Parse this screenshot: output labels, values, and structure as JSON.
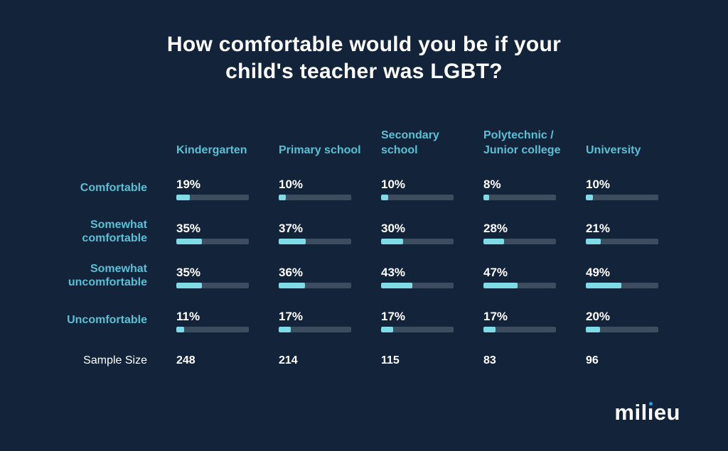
{
  "title": "How comfortable would you be if your child's teacher was LGBT?",
  "title_display": "How comfortable would you be if your\nchild's teacher was LGBT?",
  "chart_data": {
    "type": "bar",
    "title": "How comfortable would you be if your child's teacher was LGBT?",
    "categories": [
      "Kindergarten",
      "Primary school",
      "Secondary school",
      "Polytechnic / Junior college",
      "University"
    ],
    "series": [
      {
        "name": "Comfortable",
        "values": [
          19,
          10,
          10,
          8,
          10
        ]
      },
      {
        "name": "Somewhat comfortable",
        "values": [
          35,
          37,
          30,
          28,
          21
        ]
      },
      {
        "name": "Somewhat uncomfortable",
        "values": [
          35,
          36,
          43,
          47,
          49
        ]
      },
      {
        "name": "Uncomfortable",
        "values": [
          11,
          17,
          17,
          17,
          20
        ]
      }
    ],
    "sample_sizes": {
      "label": "Sample Size",
      "values": [
        248,
        214,
        115,
        83,
        96
      ]
    },
    "unit": "%",
    "bar_max": 100,
    "legend_position": "none",
    "grid": false,
    "orientation": "horizontal"
  },
  "columns_display": [
    "Kindergarten",
    "Primary school",
    "Secondary\nschool",
    "Polytechnic /\nJunior college",
    "University"
  ],
  "rows_display": [
    "Comfortable",
    "Somewhat\ncomfortable",
    "Somewhat\nuncomfortable",
    "Uncomfortable"
  ],
  "sample_row": {
    "label": "Sample Size",
    "values": [
      "248",
      "214",
      "115",
      "83",
      "96"
    ]
  },
  "logo": {
    "name": "milieu",
    "part1": "mil",
    "part2_dotless": "ı",
    "part3": "eu"
  },
  "colors": {
    "background": "#12233A",
    "accent_teal": "#5BC0D4",
    "bar_fill": "#7FDBE6",
    "bar_track": "#3E4C60",
    "text_white": "#FFFFFF",
    "logo_dot_blue": "#2E9FE0"
  }
}
